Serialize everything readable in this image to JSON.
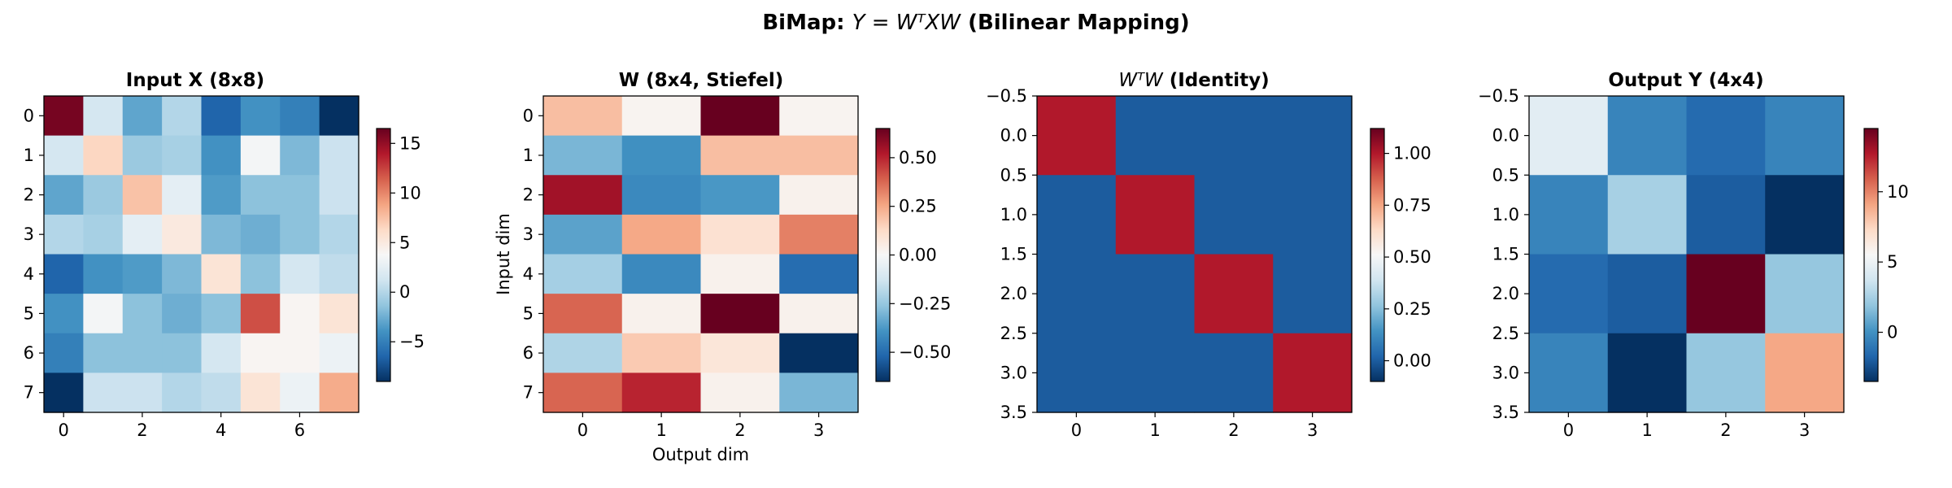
{
  "figure": {
    "suptitle_prefix": "BiMap: ",
    "suptitle_math": "Y = WᵀXW",
    "suptitle_suffix": " (Bilinear Mapping)"
  },
  "colormap": [
    "#053061",
    "#2166ac",
    "#4393c3",
    "#92c5de",
    "#d1e5f0",
    "#f7f7f7",
    "#fddbc7",
    "#f4a582",
    "#d6604d",
    "#b2182b",
    "#67001f"
  ],
  "chart_data": [
    {
      "type": "heatmap",
      "title": "Input X (8x8)",
      "title_math": "",
      "title_suffix": "",
      "rows": 8,
      "cols": 8,
      "xlabel": "",
      "ylabel": "",
      "xlim": [
        -0.5,
        7.5
      ],
      "ylim": [
        7.5,
        -0.5
      ],
      "xticks": [
        0,
        2,
        4,
        6
      ],
      "xtick_labels": [
        "0",
        "2",
        "4",
        "6"
      ],
      "yticks": [
        0,
        1,
        2,
        3,
        4,
        5,
        6,
        7
      ],
      "ytick_labels": [
        "0",
        "1",
        "2",
        "3",
        "4",
        "5",
        "6",
        "7"
      ],
      "vmin": -9,
      "vmax": 16.5,
      "colorbar_ticks": [
        -5,
        0,
        5,
        10,
        15
      ],
      "colorbar_tick_labels": [
        "−5",
        "0",
        "5",
        "10",
        "15"
      ],
      "values": [
        [
          16,
          1.5,
          -3,
          0,
          -6.5,
          -4,
          -5,
          -9
        ],
        [
          1.5,
          6.5,
          -1,
          -0.5,
          -4,
          3.5,
          -2,
          1
        ],
        [
          -3,
          -1,
          7.5,
          2.5,
          -3.5,
          -1.5,
          -1.5,
          1
        ],
        [
          0,
          -0.5,
          2.5,
          5,
          -2,
          -2.5,
          -1.5,
          0
        ],
        [
          -6.5,
          -4,
          -3.5,
          -2,
          5.5,
          -1.5,
          1.5,
          0.5
        ],
        [
          -4,
          3.5,
          -1.5,
          -2.5,
          -1.5,
          12,
          4,
          5.5
        ],
        [
          -5,
          -1.5,
          -1.5,
          -1.5,
          1.5,
          4,
          4,
          3
        ],
        [
          -9,
          1,
          1,
          0,
          0.5,
          5.5,
          3,
          8.5
        ]
      ]
    },
    {
      "type": "heatmap",
      "title": "W (8x4, Stiefel)",
      "title_math": "",
      "title_suffix": "",
      "rows": 8,
      "cols": 4,
      "xlabel": "Output dim",
      "ylabel": "Input dim",
      "xlim": [
        -0.5,
        3.5
      ],
      "ylim": [
        7.5,
        -0.5
      ],
      "xticks": [
        0,
        1,
        2,
        3
      ],
      "xtick_labels": [
        "0",
        "1",
        "2",
        "3"
      ],
      "yticks": [
        0,
        1,
        2,
        3,
        4,
        5,
        6,
        7
      ],
      "ytick_labels": [
        "0",
        "1",
        "2",
        "3",
        "4",
        "5",
        "6",
        "7"
      ],
      "vmin": -0.65,
      "vmax": 0.65,
      "colorbar_ticks": [
        -0.5,
        -0.25,
        0,
        0.25,
        0.5
      ],
      "colorbar_tick_labels": [
        "−0.50",
        "−0.25",
        "0.00",
        "0.25",
        "0.50"
      ],
      "values": [
        [
          0.2,
          0.02,
          0.65,
          0.02
        ],
        [
          -0.3,
          -0.4,
          0.2,
          0.2
        ],
        [
          0.55,
          -0.42,
          -0.38,
          0.03
        ],
        [
          -0.35,
          0.25,
          0.1,
          0.33
        ],
        [
          -0.22,
          -0.42,
          0.03,
          -0.5
        ],
        [
          0.38,
          0.03,
          0.65,
          0.03
        ],
        [
          -0.2,
          0.17,
          0.08,
          -0.65
        ],
        [
          0.38,
          0.5,
          0.03,
          -0.3
        ]
      ]
    },
    {
      "type": "heatmap",
      "title": "",
      "title_math": "WᵀW",
      "title_suffix": " (Identity)",
      "rows": 4,
      "cols": 4,
      "xlabel": "",
      "ylabel": "",
      "xlim": [
        -0.5,
        3.5
      ],
      "ylim": [
        3.5,
        -0.5
      ],
      "xticks": [
        0,
        1,
        2,
        3
      ],
      "xtick_labels": [
        "0",
        "1",
        "2",
        "3"
      ],
      "yticks": [
        -0.5,
        0,
        0.5,
        1,
        1.5,
        2,
        2.5,
        3,
        3.5
      ],
      "ytick_labels": [
        "−0.5",
        "0.0",
        "0.5",
        "1.0",
        "1.5",
        "2.0",
        "2.5",
        "3.0",
        "3.5"
      ],
      "vmin": -0.1,
      "vmax": 1.12,
      "colorbar_ticks": [
        0,
        0.25,
        0.5,
        0.75,
        1.0
      ],
      "colorbar_tick_labels": [
        "0.00",
        "0.25",
        "0.50",
        "0.75",
        "1.00"
      ],
      "values": [
        [
          1,
          0,
          0,
          0
        ],
        [
          0,
          1,
          0,
          0
        ],
        [
          0,
          0,
          1,
          0
        ],
        [
          0,
          0,
          0,
          1
        ]
      ]
    },
    {
      "type": "heatmap",
      "title": "Output Y (4x4)",
      "title_math": "",
      "title_suffix": "",
      "rows": 4,
      "cols": 4,
      "xlabel": "",
      "ylabel": "",
      "xlim": [
        -0.5,
        3.5
      ],
      "ylim": [
        3.5,
        -0.5
      ],
      "xticks": [
        0,
        1,
        2,
        3
      ],
      "xtick_labels": [
        "0",
        "1",
        "2",
        "3"
      ],
      "yticks": [
        -0.5,
        0,
        0.5,
        1,
        1.5,
        2,
        2.5,
        3,
        3.5
      ],
      "ytick_labels": [
        "−0.5",
        "0.0",
        "0.5",
        "1.0",
        "1.5",
        "2.0",
        "2.5",
        "3.0",
        "3.5"
      ],
      "vmin": -3.5,
      "vmax": 14.5,
      "colorbar_ticks": [
        0,
        5,
        10
      ],
      "colorbar_tick_labels": [
        "0",
        "5",
        "10"
      ],
      "values": [
        [
          4.5,
          -0.5,
          -1.5,
          -0.5
        ],
        [
          -0.5,
          2.5,
          -2,
          -3.5
        ],
        [
          -1.5,
          -2,
          14.5,
          2
        ],
        [
          -0.5,
          -3.5,
          2,
          9
        ]
      ]
    }
  ]
}
